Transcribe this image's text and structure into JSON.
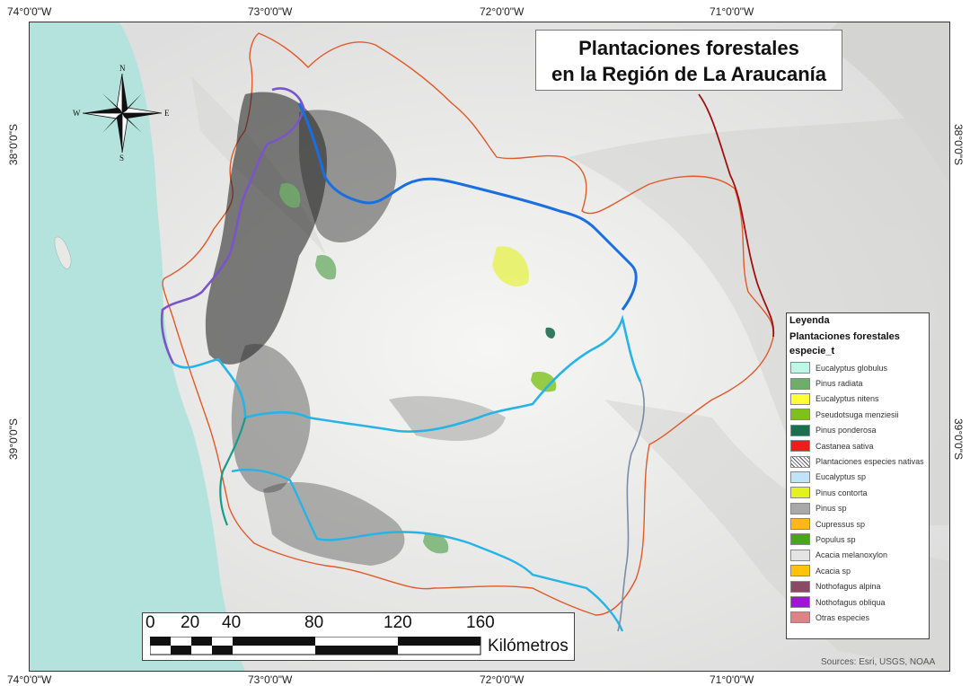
{
  "title": {
    "line1": "Plantaciones forestales",
    "line2": "en la Región de La Araucanía"
  },
  "coordinates": {
    "top": [
      "74°0'0\"W",
      "73°0'0\"W",
      "72°0'0\"W",
      "71°0'0\"W"
    ],
    "bottom": [
      "74°0'0\"W",
      "73°0'0\"W",
      "72°0'0\"W",
      "71°0'0\"W"
    ],
    "left": [
      "38°0'0\"S",
      "39°0'0\"S"
    ],
    "right": [
      "38°0'0\"S",
      "39°0'0\"S"
    ]
  },
  "north_arrow": {
    "n": "N",
    "s": "S",
    "e": "E",
    "w": "W"
  },
  "legend": {
    "heading": "Leyenda",
    "layer": "Plantaciones forestales",
    "field": "especie_t",
    "items": [
      {
        "label": "Eucalyptus globulus",
        "color": "#bff7e7"
      },
      {
        "label": "Pinus radiata",
        "color": "#6fae6a"
      },
      {
        "label": "Eucalyptus nitens",
        "color": "#ffff33"
      },
      {
        "label": "Pseudotsuga menziesii",
        "color": "#7cc21b"
      },
      {
        "label": "Pinus ponderosa",
        "color": "#1c6e4f"
      },
      {
        "label": "Castanea sativa",
        "color": "#ee1c1c"
      },
      {
        "label": "Plantaciones especies nativas",
        "color": "hatch"
      },
      {
        "label": "Eucalyptus sp",
        "color": "#bfe4f8"
      },
      {
        "label": "Pinus contorta",
        "color": "#e3f11c"
      },
      {
        "label": "Pinus sp",
        "color": "#a8a8a8"
      },
      {
        "label": "Cupressus sp",
        "color": "#ffb71c"
      },
      {
        "label": "Populus sp",
        "color": "#4ba51a"
      },
      {
        "label": "Acacia melanoxylon",
        "color": "#e4e4e4"
      },
      {
        "label": "Acacia sp",
        "color": "#ffc30a"
      },
      {
        "label": "Nothofagus alpina",
        "color": "#8a4a66"
      },
      {
        "label": "Nothofagus obliqua",
        "color": "#9e14d8"
      },
      {
        "label": "Otras especies",
        "color": "#d98585"
      }
    ]
  },
  "scale_bar": {
    "ticks": [
      "0",
      "20",
      "40",
      "80",
      "120",
      "160"
    ],
    "units": "Kilómetros"
  },
  "attribution": "Sources: Esri, USGS, NOAA",
  "colors": {
    "ocean": "#b4e3dd",
    "region_border": "#e05a2a",
    "province_border": "#a01010",
    "river_blue": "#1a6fe0",
    "river_cyan": "#26b4e6",
    "land": "#eeeeec"
  }
}
